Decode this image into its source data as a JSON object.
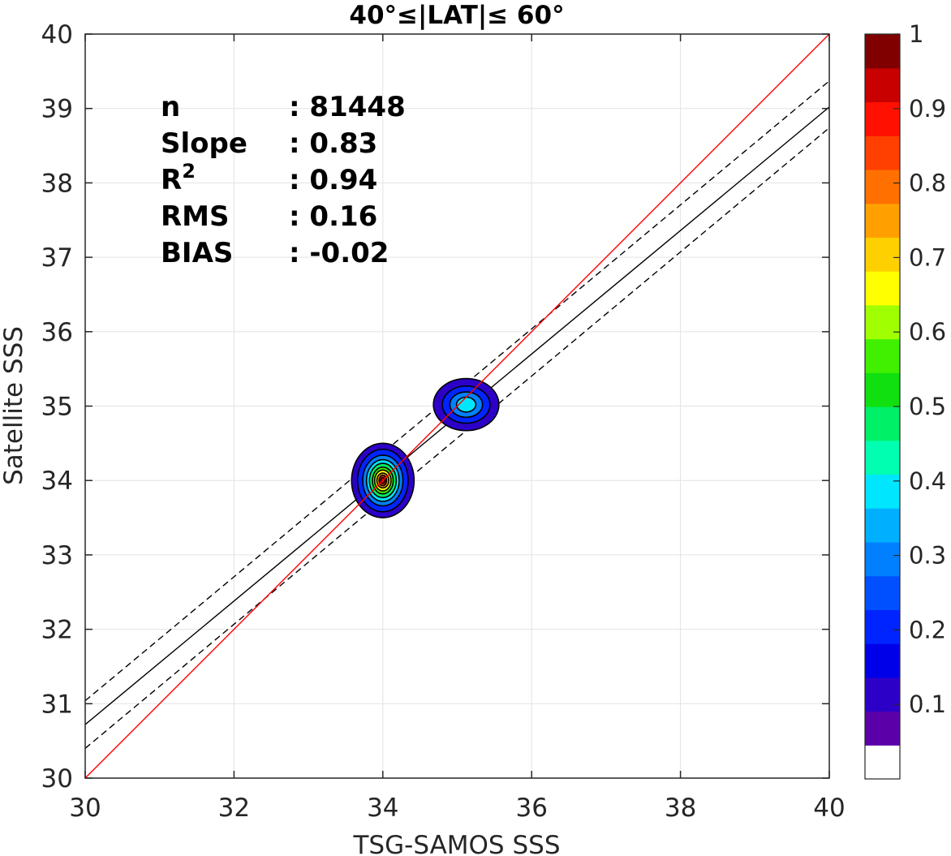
{
  "chart_data": {
    "type": "contour",
    "title": "40°≤|LAT|≤ 60°",
    "xlabel": "TSG-SAMOS SSS",
    "ylabel": "Satellite SSS",
    "xlim": [
      30,
      40
    ],
    "ylim": [
      30,
      40
    ],
    "xticks": [
      "30",
      "32",
      "34",
      "36",
      "38",
      "40"
    ],
    "yticks": [
      "30",
      "31",
      "32",
      "33",
      "34",
      "35",
      "36",
      "37",
      "38",
      "39",
      "40"
    ],
    "grid": true,
    "stats": [
      {
        "label": "n",
        "value": ": 81448"
      },
      {
        "label": "Slope",
        "value": ": 0.83"
      },
      {
        "label": "R",
        "sup": "2",
        "value": ": 0.94"
      },
      {
        "label": "RMS",
        "value": ": 0.16"
      },
      {
        "label": "BIAS",
        "value": ": -0.02"
      }
    ],
    "lines": [
      {
        "name": "one-to-one",
        "color": "#ff0000",
        "style": "solid",
        "x": [
          30,
          40
        ],
        "y": [
          30,
          40
        ]
      },
      {
        "name": "regression",
        "color": "#000000",
        "style": "solid",
        "x": [
          30,
          40
        ],
        "y": [
          30.72,
          39.02
        ]
      },
      {
        "name": "upper-bound",
        "color": "#000000",
        "style": "dashed",
        "x": [
          30,
          40
        ],
        "y": [
          31.04,
          39.37
        ]
      },
      {
        "name": "lower-bound",
        "color": "#000000",
        "style": "dashed",
        "x": [
          30,
          40
        ],
        "y": [
          30.4,
          38.74
        ]
      }
    ],
    "density_clusters": [
      {
        "center": [
          34.0,
          34.0
        ],
        "peak": 1.0,
        "levels": [
          {
            "value": 0.05,
            "rx": 0.42,
            "ry": 0.5
          },
          {
            "value": 0.15,
            "rx": 0.34,
            "ry": 0.42
          },
          {
            "value": 0.25,
            "rx": 0.27,
            "ry": 0.34
          },
          {
            "value": 0.35,
            "rx": 0.22,
            "ry": 0.28
          },
          {
            "value": 0.45,
            "rx": 0.18,
            "ry": 0.23
          },
          {
            "value": 0.55,
            "rx": 0.14,
            "ry": 0.18
          },
          {
            "value": 0.65,
            "rx": 0.11,
            "ry": 0.14
          },
          {
            "value": 0.75,
            "rx": 0.08,
            "ry": 0.1
          },
          {
            "value": 0.85,
            "rx": 0.05,
            "ry": 0.07
          },
          {
            "value": 0.95,
            "rx": 0.03,
            "ry": 0.04
          }
        ]
      },
      {
        "center": [
          35.12,
          35.02
        ],
        "peak": 0.45,
        "levels": [
          {
            "value": 0.05,
            "rx": 0.44,
            "ry": 0.35
          },
          {
            "value": 0.15,
            "rx": 0.32,
            "ry": 0.25
          },
          {
            "value": 0.25,
            "rx": 0.22,
            "ry": 0.17
          },
          {
            "value": 0.35,
            "rx": 0.13,
            "ry": 0.1
          }
        ]
      }
    ],
    "colorbar": {
      "min": 0,
      "max": 1,
      "ticks": [
        "1",
        "0.9",
        "0.8",
        "0.7",
        "0.6",
        "0.5",
        "0.4",
        "0.3",
        "0.2",
        "0.1"
      ],
      "colors": [
        "#ffffff",
        "#5b00a8",
        "#2d00c8",
        "#0000e8",
        "#0024ff",
        "#0050ff",
        "#0080ff",
        "#00b0ff",
        "#00e6ff",
        "#00ffb0",
        "#00f068",
        "#10e010",
        "#40f000",
        "#a0ff00",
        "#ffff00",
        "#ffd000",
        "#ffa000",
        "#ff7000",
        "#ff4000",
        "#ff1000",
        "#c80000",
        "#800000"
      ]
    }
  }
}
